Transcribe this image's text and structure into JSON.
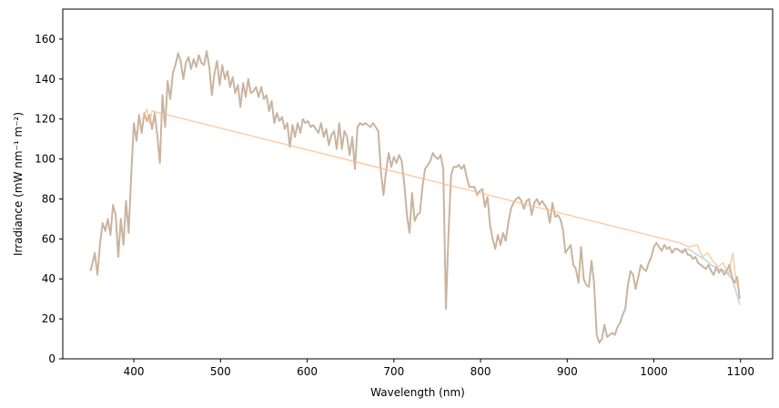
{
  "chart_data": {
    "type": "line",
    "xlabel": "Wavelength (nm)",
    "ylabel": "Irradiance (mW nm⁻¹ m⁻²)",
    "xlim": [
      318,
      1137
    ],
    "ylim": [
      0,
      175
    ],
    "xticks": [
      400,
      500,
      600,
      700,
      800,
      900,
      1000,
      1100
    ],
    "yticks": [
      0,
      20,
      40,
      60,
      80,
      100,
      120,
      140,
      160
    ],
    "grid": false,
    "series": [
      {
        "color": "#c9b49f",
        "x": [
          350,
          355,
          358,
          361,
          364,
          367,
          370,
          373,
          376,
          379,
          382,
          385,
          388,
          391,
          394,
          397,
          400,
          403,
          406,
          409,
          412,
          415,
          418,
          421,
          424,
          427,
          430,
          433,
          436,
          439,
          442,
          445,
          448,
          451,
          454,
          457,
          460,
          463,
          466,
          469,
          472,
          475,
          478,
          481,
          484,
          487,
          490,
          493,
          496,
          499,
          502,
          505,
          508,
          511,
          514,
          517,
          520,
          523,
          526,
          529,
          532,
          535,
          538,
          541,
          544,
          547,
          550,
          553,
          556,
          559,
          562,
          565,
          568,
          571,
          574,
          577,
          580,
          583,
          586,
          589,
          592,
          595,
          598,
          601,
          604,
          607,
          610,
          613,
          616,
          619,
          622,
          625,
          628,
          631,
          634,
          637,
          640,
          643,
          646,
          649,
          652,
          655,
          658,
          661,
          664,
          667,
          670,
          673,
          676,
          679,
          682,
          685,
          688,
          691,
          694,
          697,
          700,
          703,
          706,
          709,
          712,
          715,
          718,
          721,
          724,
          727,
          730,
          733,
          736,
          739,
          742,
          745,
          748,
          751,
          754,
          757,
          760,
          763,
          766,
          769,
          772,
          775,
          778,
          781,
          784,
          787,
          790,
          793,
          796,
          799,
          802,
          805,
          808,
          811,
          814,
          817,
          820,
          823,
          826,
          829,
          832,
          835,
          838,
          841,
          844,
          847,
          850,
          853,
          856,
          859,
          862,
          865,
          868,
          871,
          874,
          877,
          880,
          883,
          886,
          889,
          892,
          895,
          898,
          901,
          904,
          907,
          910,
          913,
          916,
          919,
          922,
          925,
          928,
          931,
          934,
          937,
          940,
          943,
          946,
          949,
          952,
          955,
          958,
          961,
          964,
          967,
          970,
          973,
          976,
          979,
          982,
          985,
          988,
          991,
          994,
          997,
          1000,
          1003,
          1006,
          1009,
          1012,
          1015,
          1018,
          1021,
          1024,
          1027,
          1030,
          1033,
          1036,
          1039,
          1042,
          1045,
          1048,
          1051,
          1054,
          1057,
          1060,
          1063,
          1066,
          1069,
          1072,
          1075,
          1078,
          1081,
          1084,
          1087,
          1090,
          1093,
          1096,
          1099
        ],
        "values": [
          44,
          53,
          42,
          58,
          68,
          64,
          70,
          62,
          77,
          72,
          51,
          70,
          57,
          79,
          63,
          92,
          118,
          109,
          122,
          113,
          123,
          119,
          122,
          115,
          123,
          112,
          98,
          132,
          116,
          139,
          130,
          143,
          147,
          153,
          149,
          140,
          148,
          151,
          145,
          150,
          146,
          152,
          148,
          147,
          154,
          146,
          132,
          143,
          149,
          137,
          147,
          140,
          144,
          136,
          141,
          133,
          137,
          126,
          138,
          131,
          140,
          133,
          134,
          136,
          131,
          136,
          130,
          132,
          124,
          129,
          118,
          123,
          119,
          121,
          115,
          118,
          106,
          117,
          111,
          118,
          113,
          120,
          118,
          119,
          116,
          117,
          115,
          113,
          118,
          111,
          115,
          107,
          112,
          114,
          105,
          118,
          105,
          114,
          111,
          102,
          111,
          95,
          116,
          118,
          117,
          118,
          117,
          116,
          118,
          116,
          114,
          94,
          82,
          94,
          103,
          96,
          101,
          98,
          102,
          99,
          88,
          72,
          63,
          83,
          69,
          72,
          73,
          86,
          95,
          97,
          99,
          103,
          101,
          100,
          102,
          95,
          25,
          62,
          92,
          96,
          96,
          97,
          95,
          97,
          91,
          86,
          86,
          86,
          82,
          84,
          85,
          76,
          81,
          67,
          60,
          55,
          62,
          57,
          63,
          59,
          68,
          75,
          78,
          80,
          81,
          79,
          75,
          79,
          80,
          72,
          78,
          80,
          77,
          79,
          77,
          75,
          68,
          78,
          71,
          72,
          70,
          65,
          53,
          55,
          57,
          47,
          45,
          38,
          56,
          40,
          37,
          36,
          49,
          38,
          12,
          8,
          10,
          17,
          11,
          12,
          13,
          12,
          16,
          18,
          22,
          25,
          37,
          44,
          42,
          35,
          41,
          47,
          45,
          44,
          48,
          51,
          56,
          58,
          56,
          54,
          57,
          55,
          56,
          53,
          55,
          55,
          54,
          53,
          55,
          52,
          52,
          50,
          51,
          48,
          47,
          46,
          45,
          47,
          44,
          42,
          46,
          43,
          45,
          42,
          44,
          47,
          41,
          38,
          41,
          30
        ]
      },
      {
        "color": "#ffbb88",
        "x": [
          410,
          415,
          418,
          421,
          1030,
          1040,
          1050,
          1056,
          1062,
          1068,
          1074,
          1080,
          1086,
          1091,
          1095,
          1098
        ],
        "values": [
          120,
          125,
          118,
          124,
          58,
          56,
          57,
          51,
          53,
          49,
          46,
          48,
          42,
          53,
          38,
          36
        ]
      },
      {
        "color": "#a9c4d8",
        "x": [
          1030,
          1040,
          1050,
          1058,
          1066,
          1074,
          1082,
          1090,
          1096,
          1099
        ],
        "values": [
          54,
          55,
          52,
          50,
          47,
          45,
          44,
          40,
          32,
          27
        ]
      }
    ]
  }
}
